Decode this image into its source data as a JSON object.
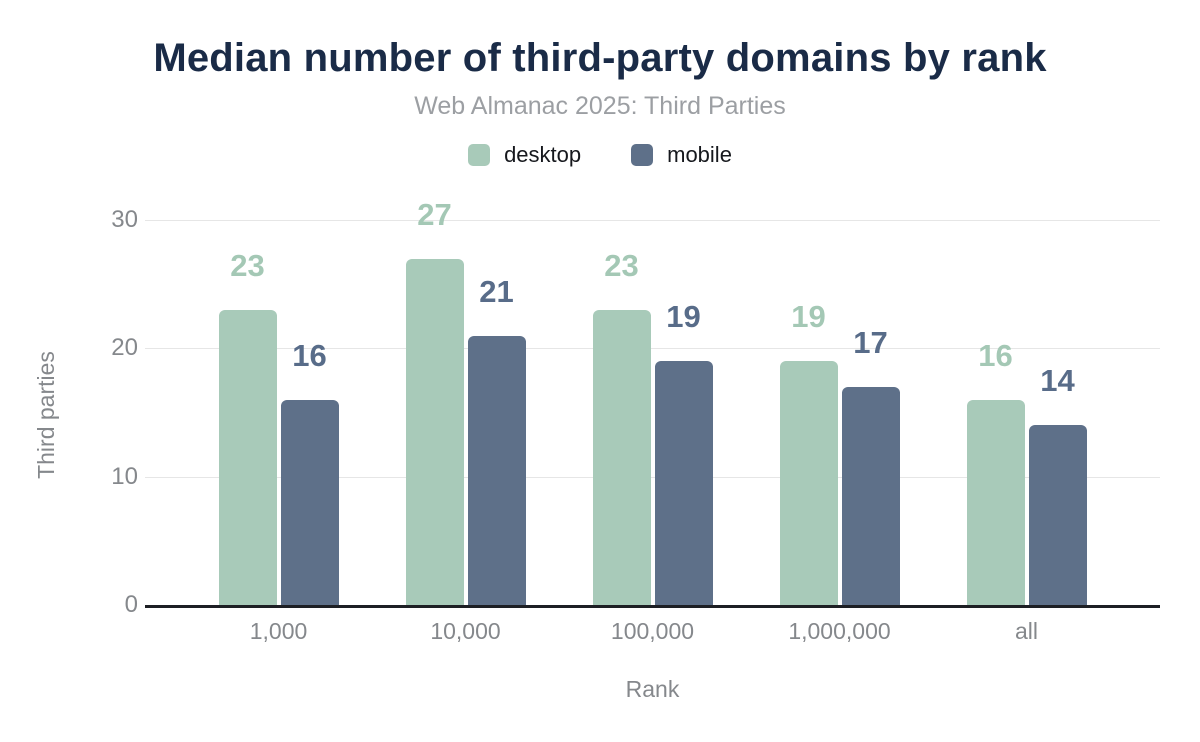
{
  "chart": {
    "title": "Median number of third-party domains by rank",
    "subtitle": "Web Almanac 2025: Third Parties"
  },
  "chart_data": {
    "type": "bar",
    "title": "Median number of third-party domains by rank",
    "subtitle": "Web Almanac 2025: Third Parties",
    "categories": [
      "1,000",
      "10,000",
      "100,000",
      "1,000,000",
      "all"
    ],
    "series": [
      {
        "name": "desktop",
        "color": "#a8cab9",
        "label_color": "#a4c8b5",
        "values": [
          23,
          27,
          23,
          19,
          16
        ]
      },
      {
        "name": "mobile",
        "color": "#5e7089",
        "label_color": "#586c89",
        "values": [
          16,
          21,
          19,
          17,
          14
        ]
      }
    ],
    "xlabel": "Rank",
    "ylabel": "Third parties",
    "ylim": [
      0,
      30
    ],
    "yticks": [
      0,
      10,
      20,
      30
    ],
    "grid": true,
    "legend_position": "top",
    "data_labels": true,
    "axis_label_color": "#85888c",
    "gridline_color": "#e6e6e6",
    "axis_line_color": "#1d1f24",
    "title_color": "#1a2b47",
    "subtitle_color": "#9c9fa3"
  }
}
